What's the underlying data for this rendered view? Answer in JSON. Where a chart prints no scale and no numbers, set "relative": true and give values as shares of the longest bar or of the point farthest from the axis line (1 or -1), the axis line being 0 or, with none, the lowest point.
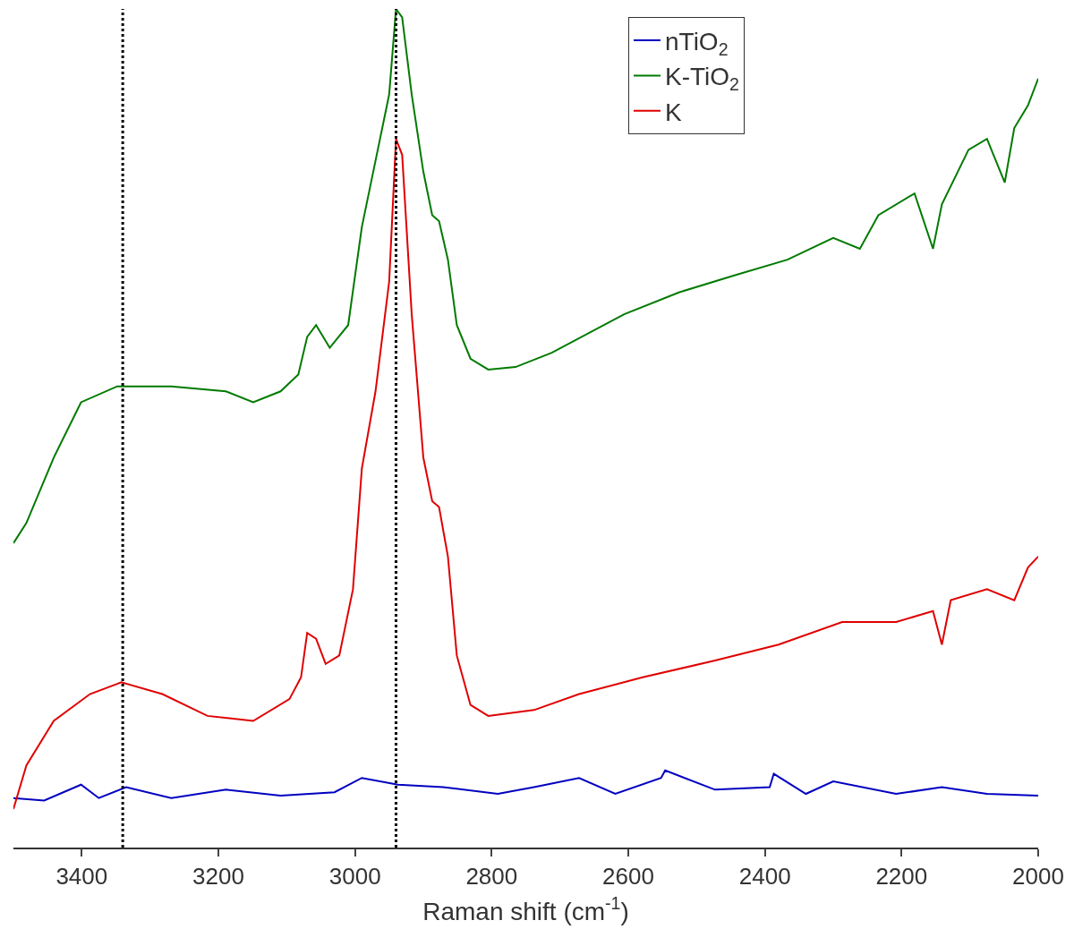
{
  "chart_data": {
    "type": "line",
    "relative": true,
    "xlabel": "Raman shift (cm$^{-1}$)",
    "xlim": [
      3500,
      2000
    ],
    "xticks": [
      3400,
      3200,
      3000,
      2800,
      2600,
      2400,
      2200,
      2000
    ],
    "legend": "top right",
    "line_style": "solid",
    "ref_lines": [
      {
        "axis": "x",
        "value": 3340,
        "line_style": "dotted",
        "color": "#000000"
      },
      {
        "axis": "x",
        "value": 2940,
        "line_style": "dotted",
        "color": "#000000"
      }
    ],
    "series": [
      {
        "name": "nTiO$_{2}$",
        "color": "#0000c0",
        "x": [
          3500,
          3455,
          3401,
          3375,
          3335,
          3269,
          3189,
          3109,
          3030,
          2990,
          2937,
          2871,
          2791,
          2738,
          2672,
          2619,
          2552,
          2546,
          2473,
          2393,
          2387,
          2340,
          2300,
          2208,
          2141,
          2075,
          2000
        ],
        "values": [
          0.059,
          0.056,
          0.075,
          0.059,
          0.072,
          0.059,
          0.069,
          0.062,
          0.066,
          0.083,
          0.075,
          0.072,
          0.064,
          0.072,
          0.083,
          0.064,
          0.083,
          0.092,
          0.069,
          0.072,
          0.088,
          0.064,
          0.079,
          0.064,
          0.072,
          0.064,
          0.062
        ]
      },
      {
        "name": "K-TiO$_{2}$",
        "color": "#007a00",
        "x": [
          3500,
          3481,
          3441,
          3401,
          3348,
          3269,
          3189,
          3149,
          3109,
          3083,
          3070,
          3057,
          3037,
          3010,
          2990,
          2970,
          2950,
          2940,
          2931,
          2917,
          2900,
          2887,
          2877,
          2864,
          2851,
          2831,
          2805,
          2765,
          2712,
          2606,
          2526,
          2446,
          2367,
          2300,
          2261,
          2234,
          2181,
          2154,
          2141,
          2102,
          2075,
          2049,
          2035,
          2015,
          2000
        ],
        "values": [
          0.363,
          0.387,
          0.465,
          0.531,
          0.55,
          0.55,
          0.544,
          0.531,
          0.544,
          0.564,
          0.609,
          0.623,
          0.596,
          0.623,
          0.74,
          0.819,
          0.898,
          1.0,
          0.99,
          0.898,
          0.806,
          0.754,
          0.747,
          0.701,
          0.623,
          0.583,
          0.57,
          0.573,
          0.59,
          0.636,
          0.662,
          0.682,
          0.701,
          0.727,
          0.714,
          0.754,
          0.78,
          0.714,
          0.767,
          0.832,
          0.845,
          0.793,
          0.858,
          0.885,
          0.917
        ]
      },
      {
        "name": "K",
        "color": "#e00000",
        "x": [
          3500,
          3481,
          3441,
          3388,
          3342,
          3282,
          3216,
          3149,
          3096,
          3079,
          3070,
          3057,
          3043,
          3023,
          3003,
          2990,
          2970,
          2950,
          2940,
          2931,
          2917,
          2900,
          2887,
          2877,
          2864,
          2851,
          2831,
          2805,
          2738,
          2672,
          2579,
          2473,
          2380,
          2287,
          2208,
          2154,
          2141,
          2128,
          2075,
          2035,
          2015,
          2000
        ],
        "values": [
          0.046,
          0.098,
          0.151,
          0.183,
          0.197,
          0.183,
          0.157,
          0.151,
          0.177,
          0.203,
          0.256,
          0.249,
          0.219,
          0.229,
          0.308,
          0.452,
          0.544,
          0.675,
          0.845,
          0.826,
          0.636,
          0.465,
          0.413,
          0.406,
          0.347,
          0.229,
          0.17,
          0.157,
          0.164,
          0.183,
          0.203,
          0.223,
          0.242,
          0.269,
          0.269,
          0.282,
          0.242,
          0.295,
          0.308,
          0.295,
          0.334,
          0.347
        ]
      }
    ]
  }
}
